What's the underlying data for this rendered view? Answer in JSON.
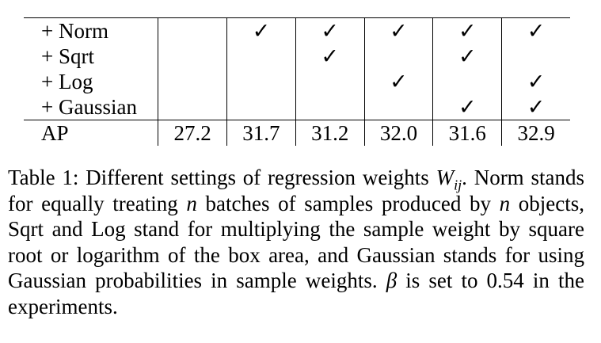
{
  "table": {
    "rows": [
      {
        "label": "+ Norm",
        "cells": [
          null,
          "✓",
          "✓",
          "✓",
          "✓",
          "✓"
        ]
      },
      {
        "label": "+ Sqrt",
        "cells": [
          null,
          null,
          "✓",
          null,
          "✓",
          null
        ]
      },
      {
        "label": "+ Log",
        "cells": [
          null,
          null,
          null,
          "✓",
          null,
          "✓"
        ]
      },
      {
        "label": "+ Gaussian",
        "cells": [
          null,
          null,
          null,
          null,
          "✓",
          "✓"
        ]
      },
      {
        "label": "AP",
        "cells": [
          "27.2",
          "31.7",
          "31.2",
          "32.0",
          "31.6",
          "32.9"
        ]
      }
    ]
  },
  "caption": [
    "Table 1: Different settings of regression weights ",
    "W",
    "ij",
    ". Norm stands for equally treating ",
    "n",
    " batches of samples produced by ",
    "n",
    " objects, Sqrt and Log stand for multiplying the sample weight by square root or logarithm of the box area, and Gaussian stands for using Gaussian probabilities in sample weights. ",
    "β",
    " is set to 0.54 in the experiments."
  ]
}
